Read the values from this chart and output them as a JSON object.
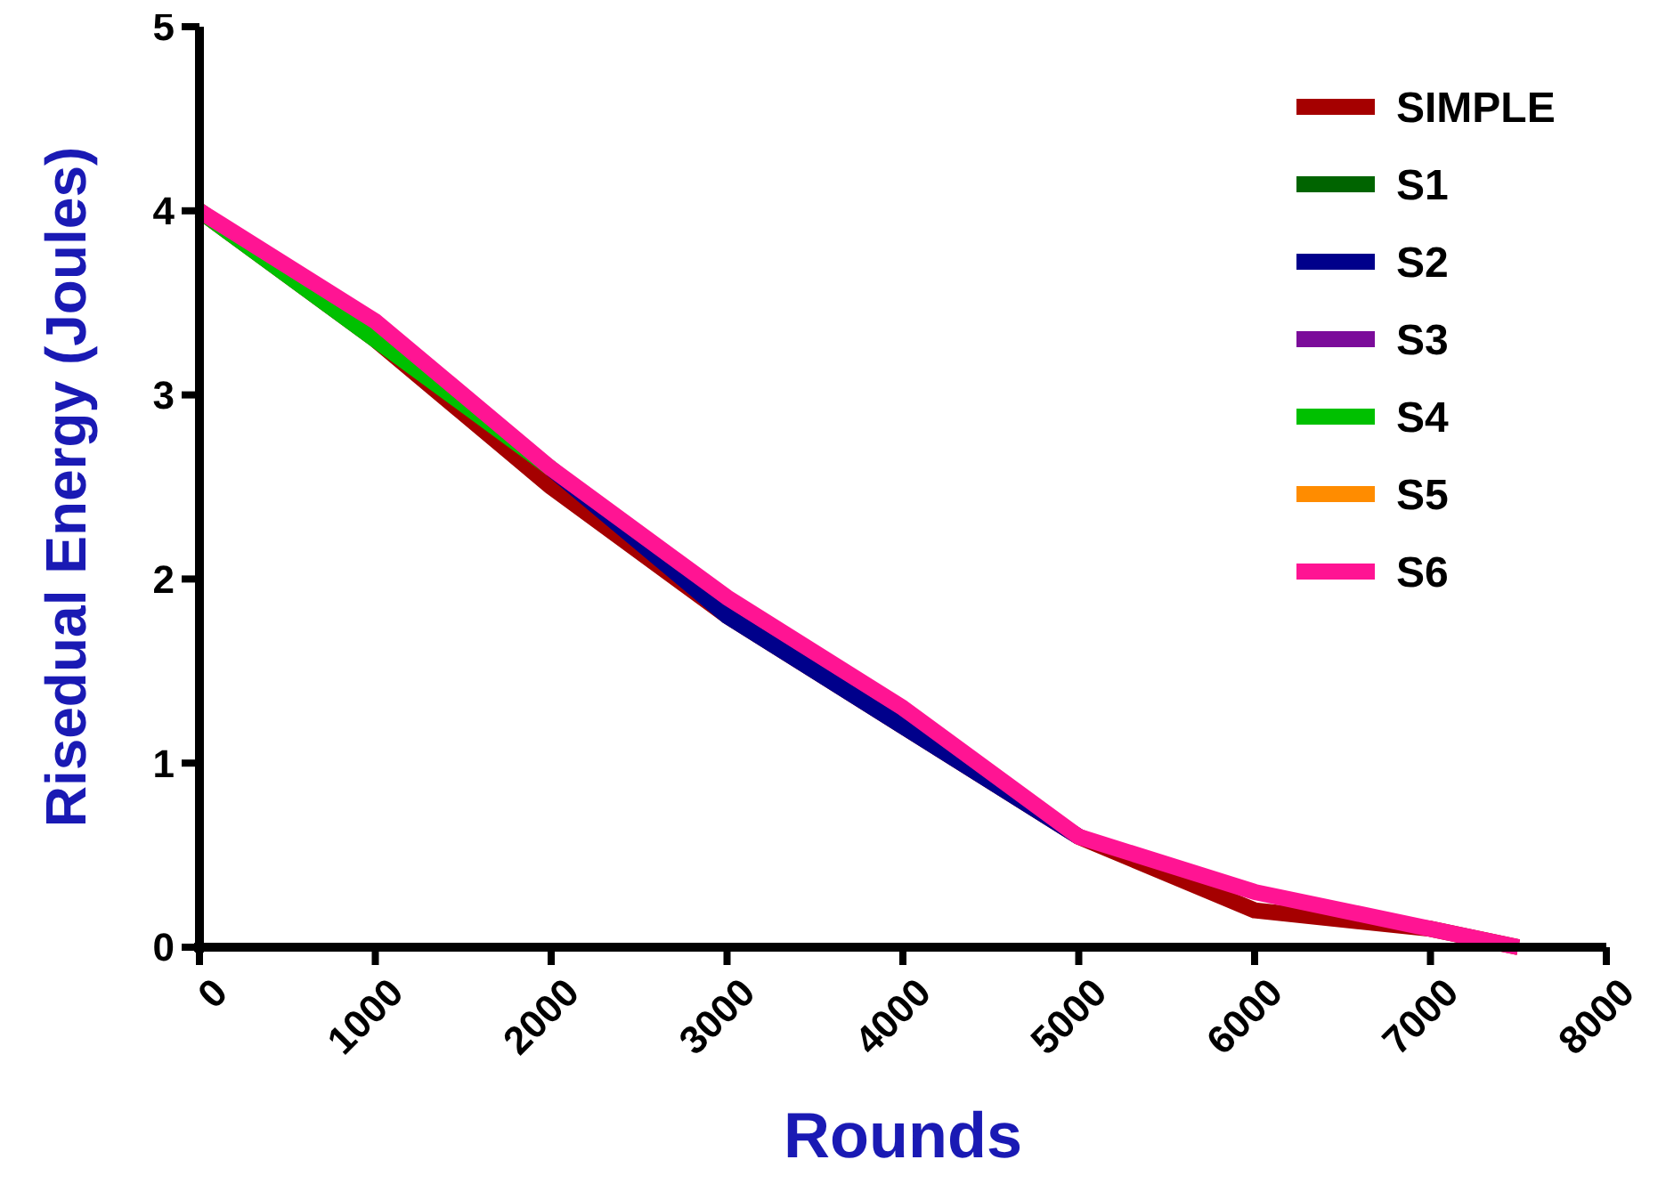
{
  "chart_data": {
    "type": "line",
    "xlabel": "Rounds",
    "ylabel": "Risedual Energy (Joules)",
    "x": [
      0,
      1000,
      2000,
      3000,
      4000,
      5000,
      6000,
      7000,
      7500
    ],
    "xlim": [
      0,
      8000
    ],
    "xticks": [
      0,
      1000,
      2000,
      3000,
      4000,
      5000,
      6000,
      7000,
      8000
    ],
    "ylim": [
      0,
      5
    ],
    "yticks": [
      0,
      1,
      2,
      3,
      4,
      5
    ],
    "grid": false,
    "legend": "top right",
    "marker": "none",
    "line_style": "solid",
    "series": [
      {
        "name": "SIMPLE",
        "color": "#a50000",
        "values": [
          4.0,
          3.3,
          2.5,
          1.8,
          1.2,
          0.6,
          0.2,
          0.1,
          0
        ]
      },
      {
        "name": "S1",
        "color": "#006400",
        "values": [
          null,
          null,
          null,
          null,
          null,
          null,
          null,
          null,
          null
        ]
      },
      {
        "name": "S2",
        "color": "#00008b",
        "values": [
          null,
          null,
          2.6,
          1.8,
          1.2,
          0.6,
          null,
          null,
          null
        ]
      },
      {
        "name": "S3",
        "color": "#7b0c9a",
        "values": [
          null,
          null,
          null,
          null,
          null,
          null,
          null,
          null,
          null
        ]
      },
      {
        "name": "S4",
        "color": "#00c000",
        "values": [
          4.0,
          3.3,
          2.6,
          null,
          null,
          null,
          null,
          null,
          null
        ]
      },
      {
        "name": "S5",
        "color": "#ff8c00",
        "values": [
          null,
          null,
          null,
          null,
          null,
          null,
          null,
          null,
          null
        ]
      },
      {
        "name": "S6",
        "color": "#ff1493",
        "values": [
          4.0,
          3.4,
          2.6,
          1.9,
          1.3,
          0.6,
          0.3,
          0.1,
          0
        ]
      }
    ]
  }
}
